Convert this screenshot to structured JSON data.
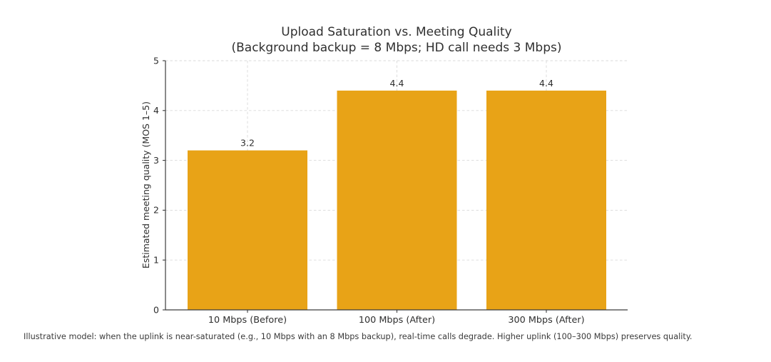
{
  "chart_data": {
    "type": "bar",
    "title": "Upload Saturation vs. Meeting Quality",
    "subtitle": "(Background backup = 8 Mbps; HD call needs 3 Mbps)",
    "categories": [
      "10 Mbps (Before)",
      "100 Mbps (After)",
      "300 Mbps (After)"
    ],
    "values": [
      3.2,
      4.4,
      4.4
    ],
    "bar_labels": [
      "3.2",
      "4.4",
      "4.4"
    ],
    "xlabel": "",
    "ylabel": "Estimated meeting quality (MOS 1–5)",
    "ylim": [
      0,
      5
    ],
    "yticks": [
      0,
      1,
      2,
      3,
      4,
      5
    ],
    "ytick_labels": [
      "0",
      "1",
      "2",
      "3",
      "4",
      "5"
    ],
    "bar_color": "#E8A317",
    "grid": {
      "horizontal": true,
      "vertical": true,
      "style": "dashed",
      "color": "#d9d9d9"
    },
    "legend": "none",
    "axis_color": "#3c3c3c",
    "annotation": "Illustrative model: when the uplink is near-saturated (e.g., 10 Mbps with an 8 Mbps backup), real-time calls degrade. Higher uplink (100–300 Mbps) preserves quality."
  }
}
